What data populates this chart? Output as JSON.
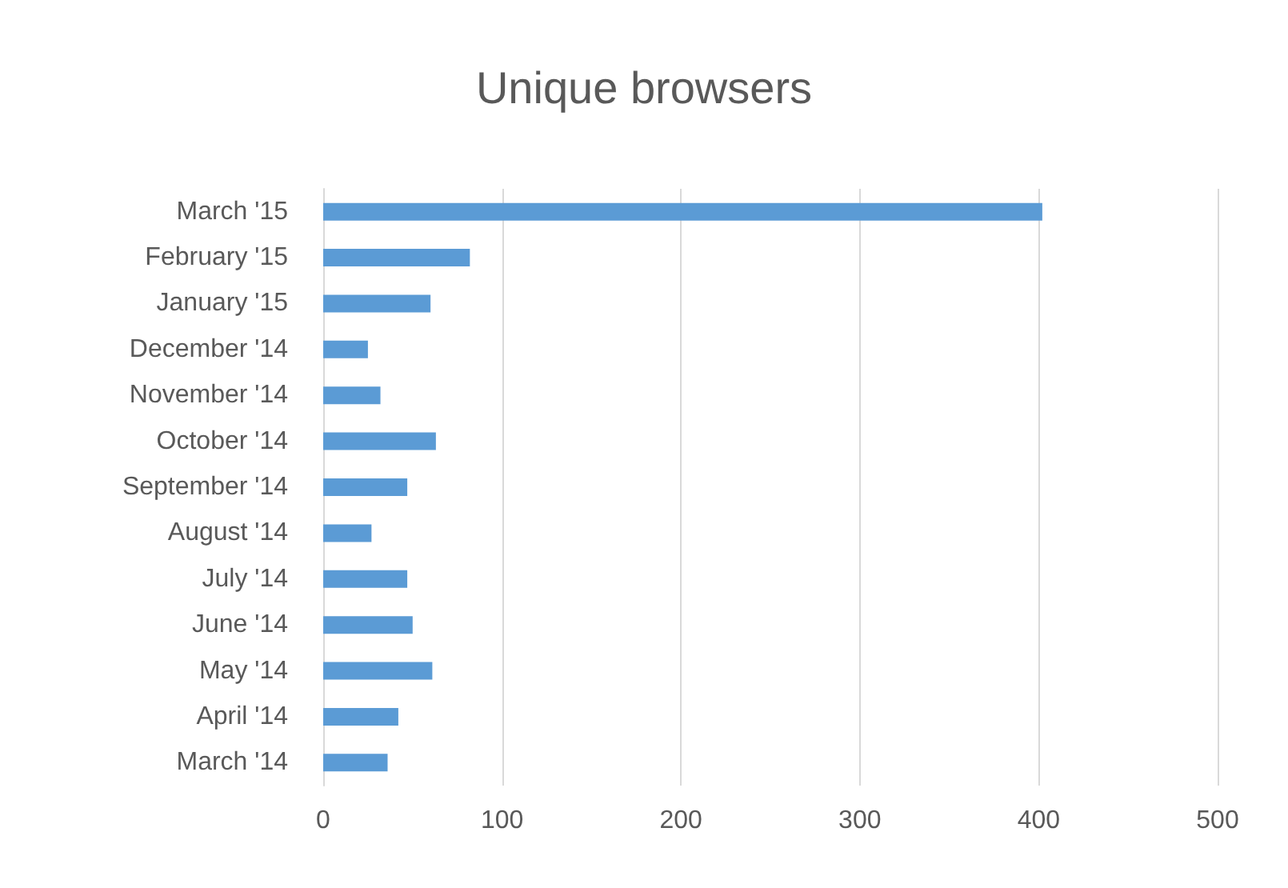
{
  "chart_data": {
    "type": "bar",
    "orientation": "horizontal",
    "title": "Unique browsers",
    "categories": [
      "March '15",
      "February '15",
      "January '15",
      "December '14",
      "November '14",
      "October '14",
      "September '14",
      "August '14",
      "July '14",
      "June '14",
      "May '14",
      "April '14",
      "March '14"
    ],
    "values": [
      402,
      82,
      60,
      25,
      32,
      63,
      47,
      27,
      47,
      50,
      61,
      42,
      36
    ],
    "color": "#5b9bd5",
    "xlim": [
      0,
      500
    ],
    "xticks": [
      0,
      100,
      200,
      300,
      400,
      500
    ],
    "grid": "x"
  }
}
